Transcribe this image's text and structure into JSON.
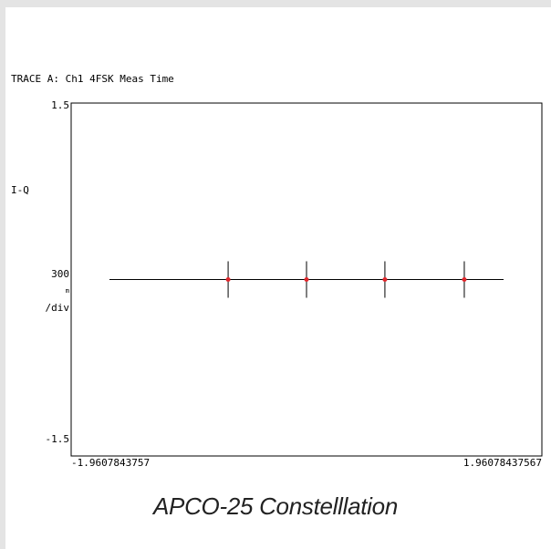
{
  "chart_data": {
    "type": "scatter",
    "title": "TRACE A: Ch1 4FSK Meas Time",
    "ylabel": "I-Q",
    "scale": {
      "value": "300",
      "unit": "m",
      "per": "/div"
    },
    "ytick_labels": [
      "1.5",
      "-1.5"
    ],
    "xtick_labels": [
      "-1.9607843757",
      "1.96078437567"
    ],
    "xlim": [
      -1.9607843757,
      1.96078437567
    ],
    "ylim": [
      -1.5,
      1.5
    ],
    "trace": {
      "x": [
        -1.9607843757,
        1.96078437567
      ],
      "y": 0
    },
    "points": [
      {
        "x": -0.78,
        "y": 0
      },
      {
        "x": 0.0,
        "y": 0
      },
      {
        "x": 0.78,
        "y": 0
      },
      {
        "x": 1.57,
        "y": 0
      }
    ],
    "colors": {
      "point": "#e0262b",
      "line": "#000000",
      "background": "#ffffff",
      "frame": "#e4e4e4"
    }
  },
  "caption": "APCO-25 Constelllation"
}
